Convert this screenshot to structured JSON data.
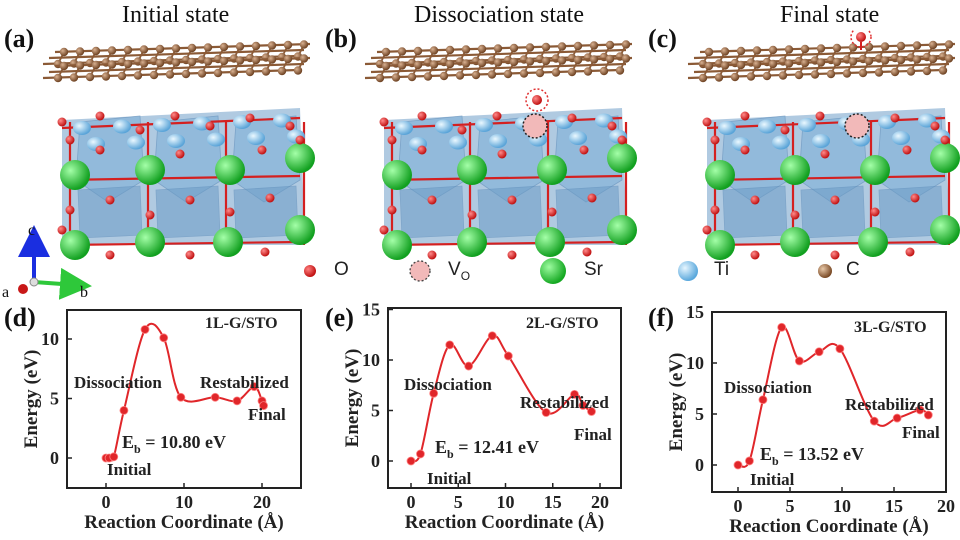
{
  "figure": {
    "panels_top": [
      {
        "label": "(a)",
        "title": "Initial state",
        "vacancy": false,
        "o_marker": "none"
      },
      {
        "label": "(b)",
        "title": "Dissociation state",
        "vacancy": true,
        "o_marker": "between"
      },
      {
        "label": "(c)",
        "title": "Final state",
        "vacancy": true,
        "o_marker": "above"
      }
    ],
    "axes_indicator": {
      "a": "a",
      "b": "b",
      "c": "c"
    },
    "legend": [
      {
        "symbol": "O",
        "label": "O",
        "color": "#d42020"
      },
      {
        "symbol": "Vo",
        "label": "V",
        "sub": "O",
        "color": "#f0b8b8"
      },
      {
        "symbol": "Sr",
        "label": "Sr",
        "color": "#2ec83a"
      },
      {
        "symbol": "Ti",
        "label": "Ti",
        "color": "#8cc6ec"
      },
      {
        "symbol": "C",
        "label": "C",
        "color": "#9a6a44"
      }
    ],
    "colors": {
      "curve": "#e0262a",
      "oxygen": "#d42020",
      "strontium": "#2ec83a",
      "titanium": "#8cc6ec",
      "carbon": "#8b5a36",
      "octahedra": "#6f9fc8"
    }
  },
  "chart_data": [
    {
      "type": "line",
      "panel": "(d)",
      "title": "1L-G/STO",
      "xlabel": "Reaction Coordinate (Å)",
      "ylabel": "Energy (eV)",
      "xlim": [
        -4.5,
        25
      ],
      "ylim": [
        -2.5,
        12.5
      ],
      "xticks": [
        0,
        10,
        20
      ],
      "yticks": [
        0,
        5,
        10
      ],
      "x": [
        0,
        0.4,
        1,
        2.3,
        5,
        7.4,
        9.6,
        14,
        16.8,
        19,
        20,
        20.2
      ],
      "y": [
        0,
        0,
        0.1,
        4.0,
        10.8,
        10.1,
        5.1,
        5.1,
        4.8,
        6.0,
        4.8,
        4.4
      ],
      "annotations": [
        "Dissociation",
        "Restabilized",
        "Final",
        "Initial",
        "E_b = 10.80 eV"
      ],
      "barrier": {
        "label": "E",
        "sub": "b",
        "value": " = 10.80 eV"
      },
      "grid": false
    },
    {
      "type": "line",
      "panel": "(e)",
      "title": "2L-G/STO",
      "xlabel": "Reaction Coordinate (Å)",
      "ylabel": "Energy (eV)",
      "xlim": [
        -2.5,
        22.5
      ],
      "ylim": [
        -2.5,
        15
      ],
      "xticks": [
        0,
        5,
        10,
        15,
        20
      ],
      "yticks": [
        0,
        5,
        10,
        15
      ],
      "x": [
        0,
        1,
        2.4,
        4.1,
        6.1,
        8.6,
        10.3,
        14.3,
        17.3,
        18.2,
        19.1
      ],
      "y": [
        0,
        0.7,
        6.7,
        11.5,
        9.4,
        12.4,
        10.4,
        4.8,
        6.6,
        5.5,
        4.9
      ],
      "annotations": [
        "Dissociation",
        "Restabilized",
        "Final",
        "Initial",
        "E_b = 12.41 eV"
      ],
      "barrier": {
        "label": "E",
        "sub": "b",
        "value": " = 12.41 eV"
      },
      "grid": false
    },
    {
      "type": "line",
      "panel": "(f)",
      "title": "3L-G/STO",
      "xlabel": "Reaction Coordinate (Å)",
      "ylabel": "Energy (eV)",
      "xlim": [
        -2.5,
        20
      ],
      "ylim": [
        -2.5,
        15
      ],
      "xticks": [
        0,
        5,
        10,
        15,
        20
      ],
      "yticks": [
        0,
        5,
        10,
        15
      ],
      "x": [
        0,
        1.1,
        2.4,
        4.2,
        5.9,
        7.8,
        9.8,
        13.1,
        15.3,
        17.5,
        18.3
      ],
      "y": [
        0,
        0.4,
        6.4,
        13.5,
        10.2,
        11.1,
        11.4,
        4.3,
        4.6,
        5.4,
        4.9
      ],
      "annotations": [
        "Dissociation",
        "Restabilized",
        "Final",
        "Initial",
        "E_b = 13.52 eV"
      ],
      "barrier": {
        "label": "E",
        "sub": "b",
        "value": " = 13.52 eV"
      },
      "grid": false
    }
  ]
}
